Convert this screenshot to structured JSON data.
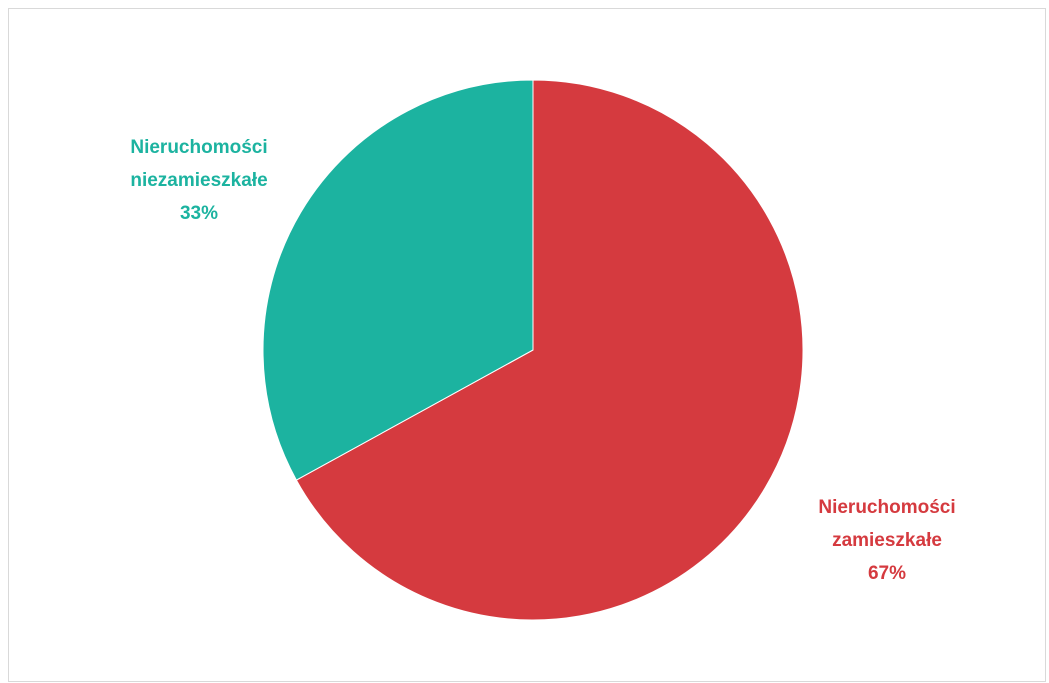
{
  "chart_data": {
    "type": "pie",
    "title": "",
    "slices": [
      {
        "name": "Nieruchomości zamieszkałe",
        "value": 67,
        "label_line1": "Nieruchomości",
        "label_line2": "zamieszkałe",
        "percent_label": "67%",
        "color": "#d53a3f"
      },
      {
        "name": "Nieruchomości niezamieszkałe",
        "value": 33,
        "label_line1": "Nieruchomości",
        "label_line2": "niezamieszkałe",
        "percent_label": "33%",
        "color": "#1cb3a0"
      }
    ],
    "start_angle_deg": 0,
    "direction": "clockwise",
    "legend": "none"
  }
}
